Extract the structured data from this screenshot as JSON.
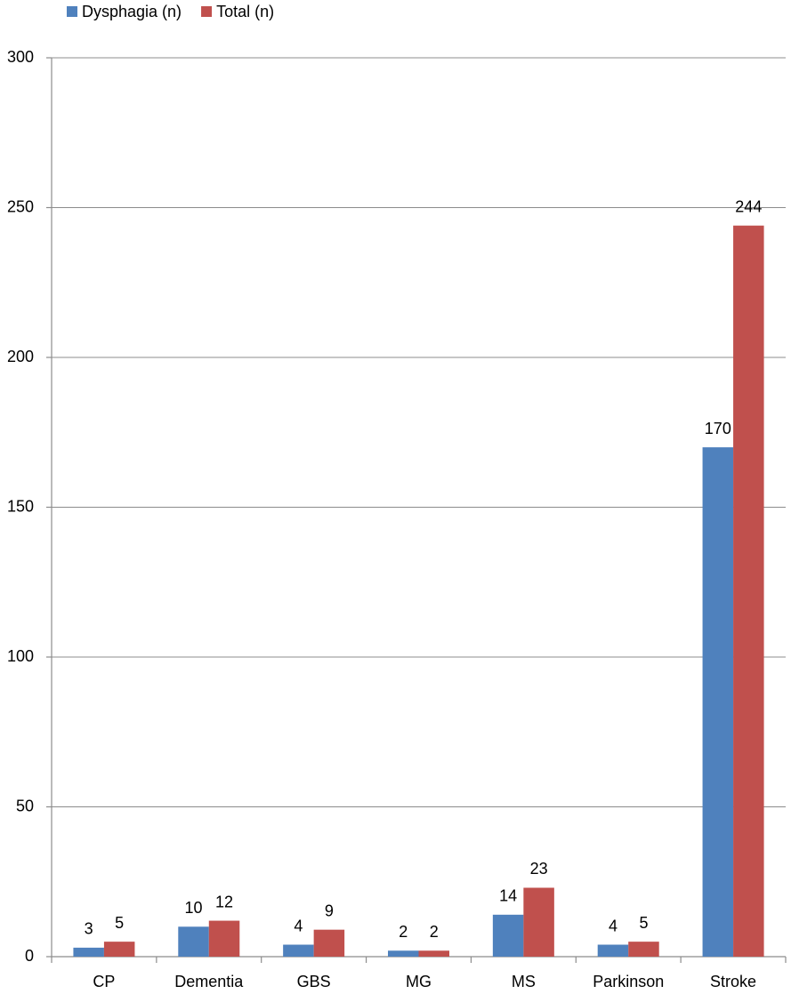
{
  "chart_data": {
    "type": "bar",
    "categories": [
      "CP",
      "Dementia",
      "GBS",
      "MG",
      "MS",
      "Parkinson",
      "Stroke"
    ],
    "series": [
      {
        "name": "Dysphagia (n)",
        "color": "#4f81bd",
        "values": [
          3,
          10,
          4,
          2,
          14,
          4,
          170
        ]
      },
      {
        "name": "Total (n)",
        "color": "#c0504d",
        "values": [
          5,
          12,
          9,
          2,
          23,
          5,
          244
        ]
      }
    ],
    "ylim": [
      0,
      300
    ],
    "yticks": [
      0,
      50,
      100,
      150,
      200,
      250,
      300
    ],
    "grid": true,
    "legend": "top-left",
    "data_labels": true
  }
}
